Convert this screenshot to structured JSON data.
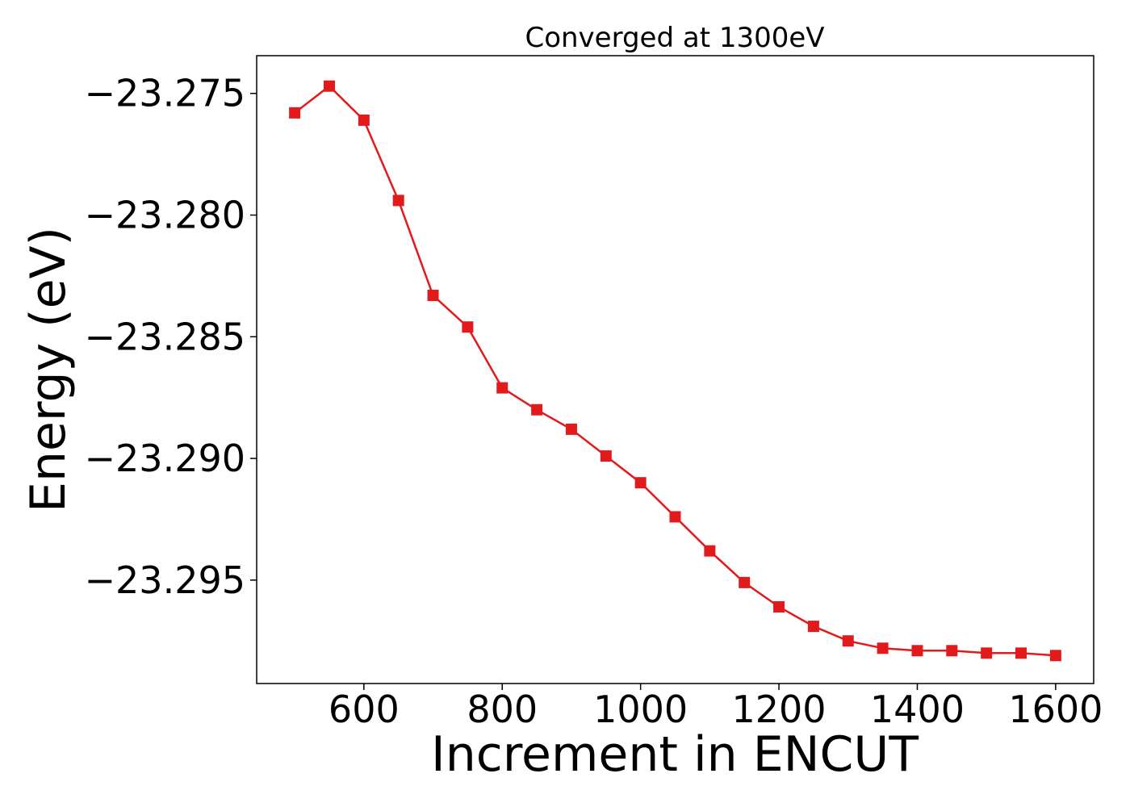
{
  "chart_data": {
    "type": "line",
    "title": "Converged at 1300eV",
    "xlabel": "Increment in ENCUT",
    "ylabel": "Energy (eV)",
    "x": [
      500,
      550,
      600,
      650,
      700,
      750,
      800,
      850,
      900,
      950,
      1000,
      1050,
      1100,
      1150,
      1200,
      1250,
      1300,
      1350,
      1400,
      1450,
      1500,
      1550,
      1600
    ],
    "series": [
      {
        "values": [
          -23.2758,
          -23.2747,
          -23.2761,
          -23.2794,
          -23.2833,
          -23.2846,
          -23.2871,
          -23.288,
          -23.2888,
          -23.2899,
          -23.291,
          -23.2924,
          -23.2938,
          -23.2951,
          -23.2961,
          -23.2969,
          -23.2975,
          -23.2978,
          -23.2979,
          -23.2979,
          -23.298,
          -23.298,
          -23.2981
        ],
        "color": "#e31a1c",
        "marker": "square"
      }
    ],
    "xlim": [
      445,
      1655
    ],
    "ylim": [
      -23.29925,
      -23.27345
    ],
    "xticks": [
      600,
      800,
      1000,
      1200,
      1400,
      1600
    ],
    "xtick_labels": [
      "600",
      "800",
      "1000",
      "1200",
      "1400",
      "1600"
    ],
    "yticks": [
      -23.275,
      -23.28,
      -23.285,
      -23.29,
      -23.295
    ],
    "ytick_labels": [
      "−23.275",
      "−23.280",
      "−23.285",
      "−23.290",
      "−23.295"
    ],
    "grid": false,
    "legend": "none"
  }
}
